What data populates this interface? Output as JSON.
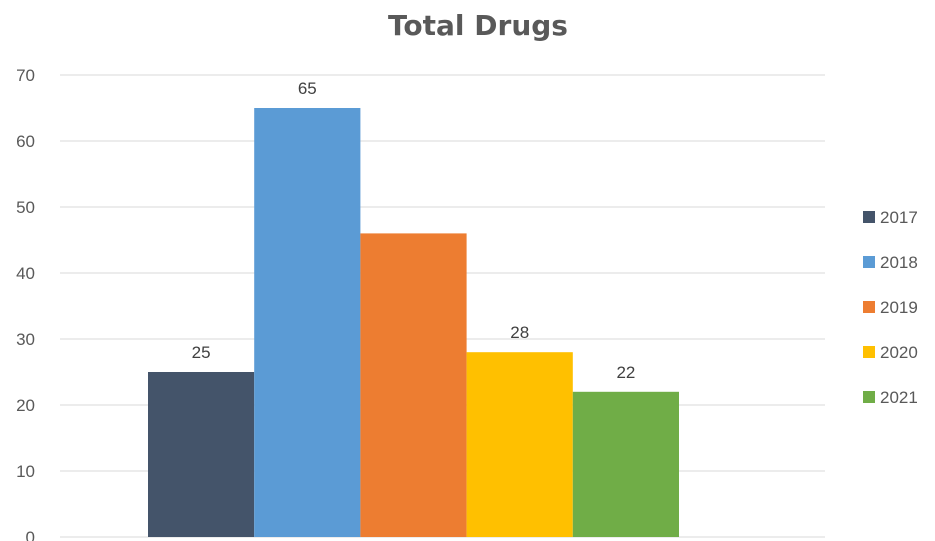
{
  "chart_data": {
    "type": "bar",
    "title": "Total Drugs",
    "xlabel": "",
    "ylabel": "",
    "categories": [
      ""
    ],
    "series": [
      {
        "name": "2017",
        "values": [
          25
        ],
        "color": "#44546a"
      },
      {
        "name": "2018",
        "values": [
          65
        ],
        "color": "#5b9bd5"
      },
      {
        "name": "2019",
        "values": [
          46
        ],
        "color": "#ed7d31"
      },
      {
        "name": "2020",
        "values": [
          28
        ],
        "color": "#ffc000"
      },
      {
        "name": "2021",
        "values": [
          22
        ],
        "color": "#70ad47"
      }
    ],
    "data_labels": [
      "25",
      "65",
      "",
      "28",
      "22"
    ],
    "ylim": [
      0,
      70
    ],
    "yticks": [
      0,
      10,
      20,
      30,
      40,
      50,
      60,
      70
    ],
    "grid": true,
    "legend": "right"
  }
}
